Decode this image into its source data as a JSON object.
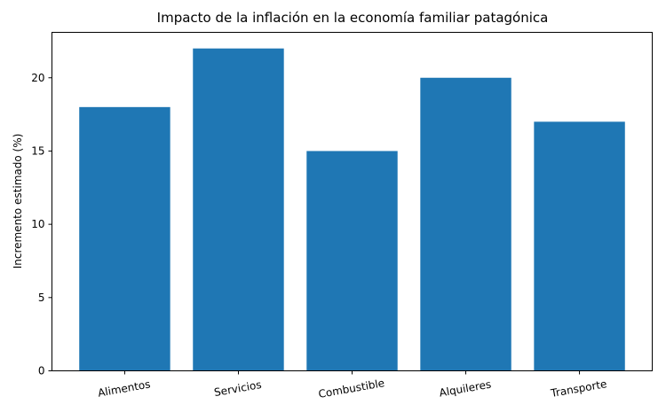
{
  "chart_data": {
    "type": "bar",
    "title": "Impacto de la inflación en la economía familiar patagónica",
    "xlabel": "",
    "ylabel": "Incremento estimado (%)",
    "categories": [
      "Alimentos",
      "Servicios",
      "Combustible",
      "Alquileres",
      "Transporte"
    ],
    "values": [
      18,
      22,
      15,
      20,
      17
    ],
    "ylim": [
      0,
      23.1
    ],
    "yticks": [
      0,
      5,
      10,
      15,
      20
    ],
    "xtick_rotation_deg": -10,
    "bar_color": "#1f77b4",
    "grid": false,
    "legend": "none"
  }
}
